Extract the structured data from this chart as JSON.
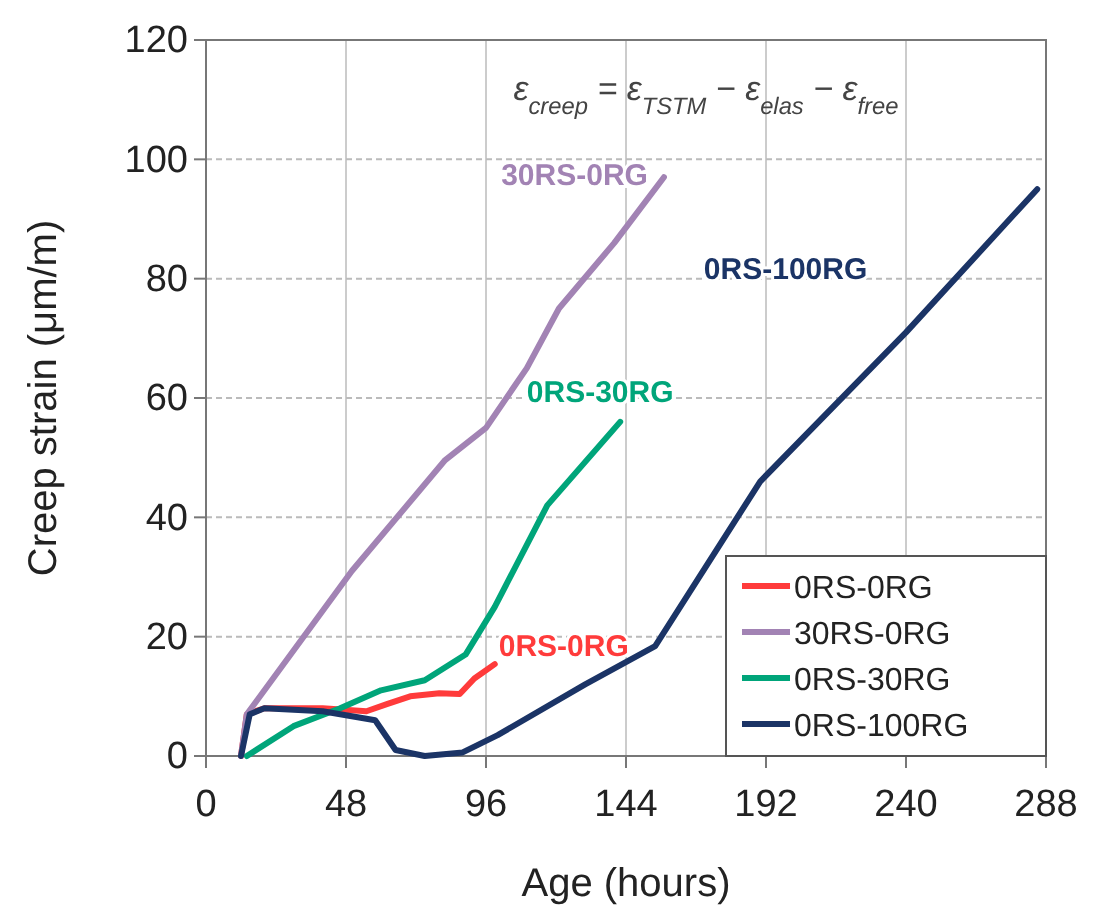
{
  "chart_data": {
    "type": "line",
    "xlabel": "Age (hours)",
    "ylabel": "Creep strain (μm/m)",
    "xlim": [
      0,
      288
    ],
    "xticks": [
      0,
      48,
      96,
      144,
      192,
      240,
      288
    ],
    "ylim": [
      0,
      120
    ],
    "yticks": [
      0,
      20,
      40,
      60,
      80,
      100,
      120
    ],
    "grid": true,
    "legend": "bottom right",
    "line_style": "solid",
    "marker": "none",
    "annotations": [
      "ε$_{creep}$ = ε$_{TSTM}$ − ε$_{elas}$ − ε$_{free}$"
    ],
    "series": [
      {
        "name": "0RS-0RG",
        "color": "#ff3b3b",
        "x": [
          12,
          14,
          20,
          40,
          55,
          62,
          70,
          80,
          87,
          92,
          99
        ],
        "values": [
          0,
          7,
          8,
          8,
          7.5,
          8.7,
          10,
          10.5,
          10.4,
          13,
          15.4
        ]
      },
      {
        "name": "30RS-0RG",
        "color": "#a283b4",
        "x": [
          12,
          14,
          50,
          82,
          96,
          110,
          121,
          140,
          157
        ],
        "values": [
          0,
          7,
          31,
          49.6,
          55,
          65,
          75,
          86,
          97
        ]
      },
      {
        "name": "0RS-30RG",
        "color": "#00a57a",
        "x": [
          14,
          30,
          46,
          60,
          75,
          89,
          99,
          117,
          142
        ],
        "values": [
          0,
          5,
          8,
          11,
          12.7,
          17,
          25,
          42,
          56
        ]
      },
      {
        "name": "0RS-100RG",
        "color": "#1b3466",
        "x": [
          12,
          15,
          20,
          40,
          58,
          65,
          75,
          88,
          100,
          130,
          154,
          190,
          240,
          285
        ],
        "values": [
          0,
          7,
          8,
          7.5,
          6,
          1,
          0,
          0.6,
          3.5,
          12,
          18.4,
          46,
          71,
          95
        ]
      }
    ]
  }
}
